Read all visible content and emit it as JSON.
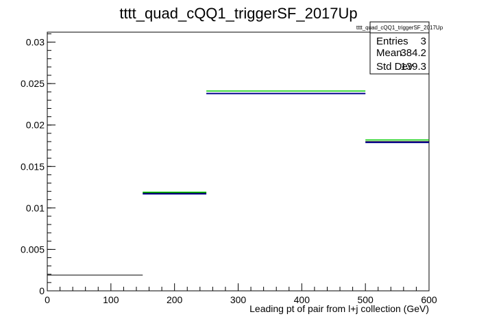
{
  "chart_data": {
    "type": "bar",
    "title": "tttt_quad_cQQ1_triggerSF_2017Up",
    "xlabel": "Leading pt of pair from l+j collection (GeV)",
    "ylabel": "",
    "xlim": [
      0,
      600
    ],
    "ylim": [
      0,
      0.0312
    ],
    "x_ticks": [
      "0",
      "100",
      "200",
      "300",
      "400",
      "500",
      "600"
    ],
    "y_ticks": [
      "0",
      "0.005",
      "0.01",
      "0.015",
      "0.02",
      "0.025",
      "0.03"
    ],
    "grid": false,
    "series": [
      {
        "style": "histogram-black",
        "color": "#000000",
        "bins": [
          {
            "x_low": 0,
            "x_high": 150,
            "value": 0.0019
          },
          {
            "x_low": 150,
            "x_high": 250,
            "value": 0.0118
          },
          {
            "x_low": 250,
            "x_high": 500,
            "value": 0.0238
          },
          {
            "x_low": 500,
            "x_high": 600,
            "value": 0.018
          }
        ]
      },
      {
        "style": "histogram-blue",
        "color": "#00008b",
        "bins": [
          {
            "x_low": 150,
            "x_high": 250,
            "value": 0.0117
          },
          {
            "x_low": 250,
            "x_high": 500,
            "value": 0.0238
          },
          {
            "x_low": 500,
            "x_high": 600,
            "value": 0.0179
          }
        ]
      },
      {
        "style": "histogram-green",
        "color": "#00cc00",
        "bins": [
          {
            "x_low": 150,
            "x_high": 250,
            "value": 0.0119
          },
          {
            "x_low": 250,
            "x_high": 500,
            "value": 0.0241
          },
          {
            "x_low": 500,
            "x_high": 600,
            "value": 0.0182
          }
        ]
      }
    ],
    "stats_box": {
      "name": "tttt_quad_cQQ1_triggerSF_2017Up",
      "rows": [
        {
          "label": "Entries",
          "value": "3"
        },
        {
          "label": "Mean",
          "value": "384.2"
        },
        {
          "label": "Std Dev",
          "value": "139.3"
        }
      ]
    }
  }
}
